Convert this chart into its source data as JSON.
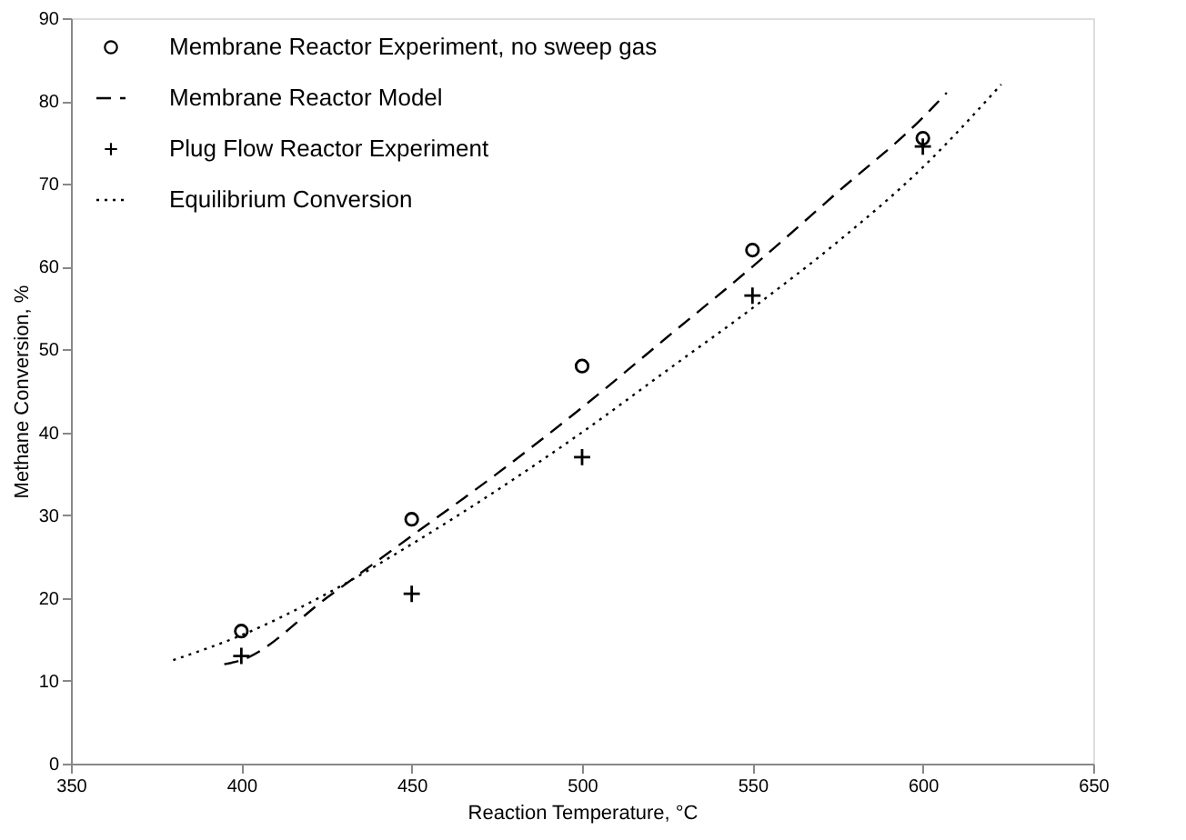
{
  "chart_data": {
    "type": "scatter",
    "xlabel": "Reaction Temperature, °C",
    "ylabel": "Methane Conversion, %",
    "xlim": [
      350,
      650
    ],
    "xticks": [
      350,
      400,
      450,
      500,
      550,
      600,
      650
    ],
    "ylim": [
      0,
      90
    ],
    "yticks": [
      0,
      10,
      20,
      30,
      40,
      50,
      60,
      70,
      80,
      90
    ],
    "grid": false,
    "legend": "top left",
    "series": [
      {
        "name": "Membrane Reactor Experiment, no sweep gas",
        "marker": "circle",
        "color": "#000000",
        "x": [
          400,
          450,
          500,
          550,
          600
        ],
        "values": [
          16,
          29.5,
          48,
          62,
          75.5
        ]
      },
      {
        "name": "Membrane Reactor Model",
        "type": "line",
        "line_style": "dashed",
        "color": "#000000",
        "x": [
          395,
          400,
          425,
          450,
          475,
          500,
          525,
          550,
          575,
          600,
          607
        ],
        "values": [
          12,
          12.5,
          20,
          27.5,
          35,
          43,
          51.5,
          60,
          69,
          78,
          81
        ]
      },
      {
        "name": "Plug Flow Reactor Experiment",
        "marker": "cross",
        "color": "#000000",
        "x": [
          400,
          450,
          500,
          550,
          600
        ],
        "values": [
          13,
          20.5,
          37,
          56.5,
          74.5
        ]
      },
      {
        "name": "Equilibrium Conversion",
        "type": "line",
        "line_style": "dotted",
        "color": "#000000",
        "x": [
          380,
          400,
          425,
          450,
          475,
          500,
          525,
          550,
          575,
          600,
          623
        ],
        "values": [
          12.5,
          15.5,
          20.5,
          26.5,
          33,
          40,
          47.5,
          55,
          63,
          72,
          82
        ]
      }
    ]
  }
}
